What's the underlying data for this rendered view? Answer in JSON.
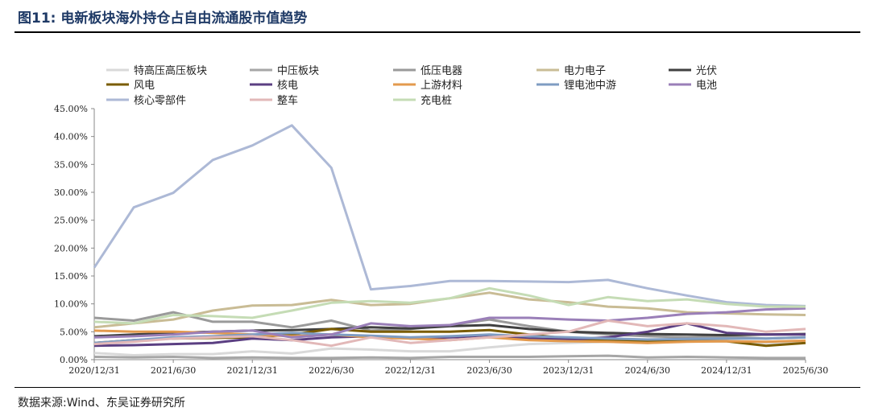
{
  "header": {
    "figure_label": "图11:",
    "title": "电新板块海外持仓占自由流通股市值趋势"
  },
  "footer": {
    "source": "数据来源:Wind、东吴证券研究所"
  },
  "chart_data": {
    "type": "line",
    "title": "",
    "xlabel": "",
    "ylabel": "",
    "ylim": [
      0,
      45
    ],
    "y_unit": "%",
    "y_ticks": [
      "0.00%",
      "5.00%",
      "10.00%",
      "15.00%",
      "20.00%",
      "25.00%",
      "30.00%",
      "35.00%",
      "40.00%",
      "45.00%"
    ],
    "x_ticks": [
      "2020/12/31",
      "2021/6/30",
      "2021/12/31",
      "2022/6/30",
      "2022/12/31",
      "2023/6/30",
      "2023/12/31",
      "2024/6/30",
      "2024/12/31",
      "2025/6/30"
    ],
    "x": [
      "2020/12/31",
      "2021/3/31",
      "2021/6/30",
      "2021/9/30",
      "2021/12/31",
      "2022/3/31",
      "2022/6/30",
      "2022/9/30",
      "2022/12/31",
      "2023/3/31",
      "2023/6/30",
      "2023/9/30",
      "2023/12/31",
      "2024/3/31",
      "2024/6/30",
      "2024/9/30",
      "2024/12/31",
      "2025/3/31",
      "2025/6/30"
    ],
    "legend_position": "top",
    "grid": false,
    "series": [
      {
        "name": "特高压高压板块",
        "color": "#d9d9d9",
        "values": [
          1.2,
          0.8,
          1.0,
          1.0,
          1.5,
          1.1,
          2.0,
          1.8,
          1.5,
          1.5,
          2.2,
          2.8,
          3.0,
          3.2,
          3.0,
          3.3,
          3.4,
          3.0,
          3.2
        ]
      },
      {
        "name": "中压板块",
        "color": "#a6a6a6",
        "values": [
          0.5,
          0.4,
          0.5,
          0.3,
          0.4,
          0.3,
          0.3,
          0.4,
          0.3,
          0.5,
          0.5,
          0.5,
          0.6,
          0.7,
          0.4,
          0.5,
          0.4,
          0.3,
          0.3
        ]
      },
      {
        "name": "低压电器",
        "color": "#9a9a9a",
        "values": [
          7.5,
          7.0,
          8.5,
          6.8,
          6.8,
          5.8,
          7.0,
          5.2,
          5.5,
          6.2,
          7.2,
          6.0,
          5.0,
          4.5,
          4.2,
          4.0,
          4.1,
          3.8,
          4.0
        ]
      },
      {
        "name": "电力电子",
        "color": "#c9bc95",
        "values": [
          5.8,
          6.5,
          7.2,
          8.8,
          9.7,
          9.8,
          10.7,
          9.8,
          10.0,
          11.0,
          12.0,
          10.8,
          10.3,
          9.5,
          9.2,
          8.5,
          8.3,
          8.1,
          8.0
        ]
      },
      {
        "name": "光伏",
        "color": "#404040",
        "values": [
          4.2,
          4.5,
          4.8,
          5.0,
          5.2,
          5.3,
          5.5,
          5.8,
          5.6,
          6.0,
          6.2,
          5.5,
          5.0,
          4.8,
          4.6,
          4.5,
          4.4,
          4.5,
          4.6
        ]
      },
      {
        "name": "风电",
        "color": "#7a5c00",
        "values": [
          3.0,
          3.5,
          3.8,
          3.9,
          4.0,
          4.5,
          5.5,
          5.0,
          5.0,
          5.0,
          5.3,
          4.5,
          3.8,
          3.4,
          3.3,
          3.3,
          3.3,
          2.5,
          3.0
        ]
      },
      {
        "name": "核电",
        "color": "#5b3f82",
        "values": [
          2.5,
          2.6,
          2.8,
          3.0,
          3.8,
          3.5,
          4.0,
          4.2,
          3.8,
          4.0,
          4.2,
          3.8,
          3.6,
          4.0,
          5.0,
          6.5,
          4.8,
          4.5,
          4.5
        ]
      },
      {
        "name": "上游材料",
        "color": "#e39a4e",
        "values": [
          5.2,
          5.0,
          5.0,
          4.8,
          4.5,
          4.2,
          4.5,
          4.0,
          3.8,
          3.5,
          4.0,
          3.5,
          3.3,
          3.2,
          3.0,
          3.2,
          3.3,
          3.2,
          3.4
        ]
      },
      {
        "name": "锂电池中游",
        "color": "#7f9cc2",
        "values": [
          3.0,
          3.5,
          4.0,
          4.2,
          4.5,
          4.8,
          4.5,
          4.3,
          4.0,
          4.2,
          4.5,
          4.2,
          4.0,
          3.8,
          3.6,
          3.7,
          3.8,
          3.8,
          4.0
        ]
      },
      {
        "name": "电池",
        "color": "#9a7fb8",
        "values": [
          4.0,
          4.2,
          4.5,
          5.0,
          5.2,
          4.0,
          4.5,
          6.5,
          6.0,
          6.2,
          7.5,
          7.5,
          7.2,
          7.0,
          7.5,
          8.2,
          8.5,
          9.0,
          9.2
        ]
      },
      {
        "name": "核心零部件",
        "color": "#adb9d6",
        "values": [
          16.5,
          27.3,
          29.9,
          35.8,
          38.4,
          42.0,
          34.4,
          12.6,
          13.2,
          14.1,
          14.1,
          14.0,
          13.9,
          14.3,
          12.8,
          11.5,
          10.3,
          9.8,
          9.6
        ]
      },
      {
        "name": "整车",
        "color": "#e2b8b8",
        "values": [
          2.8,
          3.2,
          3.8,
          4.0,
          4.2,
          3.5,
          2.5,
          4.0,
          3.0,
          3.5,
          4.0,
          4.5,
          5.0,
          7.0,
          6.0,
          6.5,
          6.0,
          5.0,
          5.5
        ]
      },
      {
        "name": "充电桩",
        "color": "#c5dcb5",
        "values": [
          6.8,
          6.5,
          8.0,
          7.8,
          7.5,
          8.8,
          10.2,
          10.5,
          10.2,
          11.0,
          12.8,
          11.5,
          9.8,
          11.2,
          10.5,
          10.8,
          10.0,
          9.5,
          9.5
        ]
      }
    ]
  }
}
